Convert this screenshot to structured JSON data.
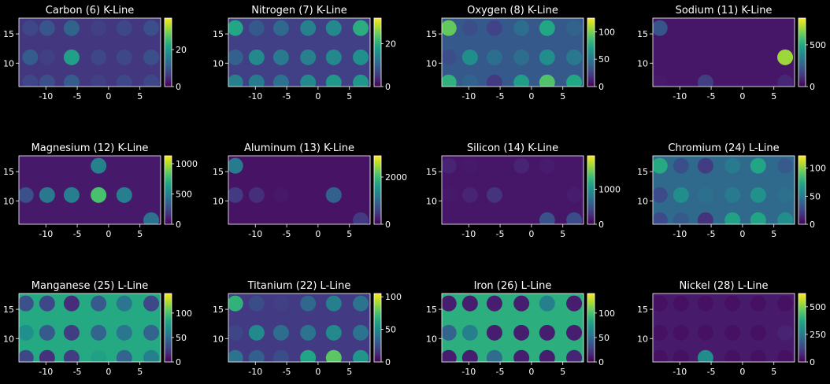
{
  "figure": {
    "background": "#000000",
    "foreground": "#ffffff",
    "colormap": "viridis"
  },
  "chart_data": [
    {
      "type": "heatmap",
      "title": "Carbon (6) K-Line",
      "xlim": [
        -14.3,
        8.3
      ],
      "ylim": [
        6,
        17.7
      ],
      "xticks": [
        "-10",
        "-5",
        "0",
        "5"
      ],
      "xtick_values": [
        -10,
        -5,
        0,
        5
      ],
      "yticks": [
        "10",
        "15"
      ],
      "ytick_values": [
        10,
        15
      ],
      "colorbar": {
        "min": 0,
        "max": 37,
        "ticks": [
          "0",
          "20"
        ],
        "tick_values": [
          0,
          20
        ]
      },
      "background_value": 6,
      "wells": {
        "columns_x": [
          -12.5,
          -9.8,
          -5.9,
          -1.6,
          2.5,
          6.8
        ],
        "rows_y": [
          16,
          11,
          6.7
        ],
        "values": [
          [
            8,
            10,
            12,
            7,
            8,
            9
          ],
          [
            11,
            7,
            21,
            8,
            8,
            9
          ],
          [
            8,
            9,
            11,
            7,
            8,
            8
          ]
        ]
      }
    },
    {
      "type": "heatmap",
      "title": "Nitrogen (7) K-Line",
      "xlim": [
        -14.3,
        8.3
      ],
      "ylim": [
        6,
        17.7
      ],
      "xticks": [
        "-10",
        "-5",
        "0",
        "5"
      ],
      "xtick_values": [
        -10,
        -5,
        0,
        5
      ],
      "yticks": [
        "10",
        "15"
      ],
      "ytick_values": [
        10,
        15
      ],
      "colorbar": {
        "min": 0,
        "max": 32,
        "ticks": [
          "0",
          "20"
        ],
        "tick_values": [
          0,
          20
        ]
      },
      "background_value": 6,
      "wells": {
        "columns_x": [
          -13.2,
          -9.8,
          -5.9,
          -1.6,
          2.5,
          6.8
        ],
        "rows_y": [
          16,
          11,
          6.7
        ],
        "values": [
          [
            19,
            9,
            11,
            14,
            15,
            20
          ],
          [
            10,
            15,
            13,
            14,
            15,
            16
          ],
          [
            14,
            13,
            12,
            15,
            17,
            17
          ]
        ]
      }
    },
    {
      "type": "heatmap",
      "title": "Oxygen (8) K-Line",
      "xlim": [
        -14.3,
        8.3
      ],
      "ylim": [
        6,
        17.7
      ],
      "xticks": [
        "-10",
        "-5",
        "0",
        "5"
      ],
      "xtick_values": [
        -10,
        -5,
        0,
        5
      ],
      "yticks": [
        "10",
        "15"
      ],
      "ytick_values": [
        10,
        15
      ],
      "colorbar": {
        "min": 0,
        "max": 125,
        "ticks": [
          "0",
          "50",
          "100"
        ],
        "tick_values": [
          0,
          50,
          100
        ]
      },
      "background_value": 35,
      "wells": {
        "columns_x": [
          -13.2,
          -9.8,
          -5.9,
          -1.6,
          2.5,
          6.8
        ],
        "rows_y": [
          16,
          11,
          6.7
        ],
        "values": [
          [
            95,
            30,
            25,
            45,
            75,
            40
          ],
          [
            30,
            62,
            45,
            45,
            62,
            50
          ],
          [
            80,
            40,
            22,
            70,
            90,
            75
          ]
        ]
      }
    },
    {
      "type": "heatmap",
      "title": "Sodium (11) K-Line",
      "xlim": [
        -14.3,
        8.3
      ],
      "ylim": [
        6,
        17.7
      ],
      "xticks": [
        "-10",
        "-5",
        "0",
        "5"
      ],
      "xtick_values": [
        -10,
        -5,
        0,
        5
      ],
      "yticks": [
        "10",
        "15"
      ],
      "ytick_values": [
        10,
        15
      ],
      "colorbar": {
        "min": 0,
        "max": 820,
        "ticks": [
          "0",
          "500"
        ],
        "tick_values": [
          0,
          500
        ]
      },
      "background_value": 50,
      "wells": {
        "columns_x": [
          -13.2,
          -9.8,
          -5.9,
          -1.6,
          2.5,
          6.8
        ],
        "rows_y": [
          16,
          11,
          6.7
        ],
        "values": [
          [
            220,
            50,
            50,
            50,
            50,
            50
          ],
          [
            50,
            50,
            50,
            50,
            50,
            700
          ],
          [
            60,
            50,
            150,
            50,
            50,
            90
          ]
        ]
      }
    },
    {
      "type": "heatmap",
      "title": "Magnesium (12) K-Line",
      "xlim": [
        -14.3,
        8.3
      ],
      "ylim": [
        6,
        17.7
      ],
      "xticks": [
        "-10",
        "-5",
        "0",
        "5"
      ],
      "xtick_values": [
        -10,
        -5,
        0,
        5
      ],
      "yticks": [
        "10",
        "15"
      ],
      "ytick_values": [
        10,
        15
      ],
      "colorbar": {
        "min": 0,
        "max": 1130,
        "ticks": [
          "0",
          "500",
          "1000"
        ],
        "tick_values": [
          0,
          500,
          1000
        ]
      },
      "background_value": 80,
      "wells": {
        "columns_x": [
          -13.2,
          -9.8,
          -5.9,
          -1.6,
          2.5,
          6.8
        ],
        "rows_y": [
          16,
          11,
          6.7
        ],
        "values": [
          [
            80,
            80,
            80,
            500,
            80,
            80
          ],
          [
            280,
            450,
            480,
            800,
            480,
            80
          ],
          [
            80,
            80,
            80,
            80,
            80,
            420
          ]
        ]
      }
    },
    {
      "type": "heatmap",
      "title": "Aluminum (13) K-Line",
      "xlim": [
        -14.3,
        8.3
      ],
      "ylim": [
        6,
        17.7
      ],
      "xticks": [
        "-10",
        "-5",
        "0",
        "5"
      ],
      "xtick_values": [
        -10,
        -5,
        0,
        5
      ],
      "yticks": [
        "10",
        "15"
      ],
      "ytick_values": [
        10,
        15
      ],
      "colorbar": {
        "min": 0,
        "max": 2900,
        "ticks": [
          "0",
          "2000"
        ],
        "tick_values": [
          0,
          2000
        ]
      },
      "background_value": 150,
      "wells": {
        "columns_x": [
          -13.2,
          -9.8,
          -5.9,
          -1.6,
          2.5,
          6.8
        ],
        "rows_y": [
          16,
          11,
          6.7
        ],
        "values": [
          [
            1200,
            150,
            150,
            150,
            150,
            150
          ],
          [
            500,
            400,
            200,
            150,
            900,
            150
          ],
          [
            150,
            150,
            150,
            150,
            150,
            500
          ]
        ]
      }
    },
    {
      "type": "heatmap",
      "title": "Silicon (14) K-Line",
      "xlim": [
        -14.3,
        8.3
      ],
      "ylim": [
        6,
        17.7
      ],
      "xticks": [
        "-10",
        "-5",
        "0",
        "5"
      ],
      "xtick_values": [
        -10,
        -5,
        0,
        5
      ],
      "yticks": [
        "10",
        "15"
      ],
      "ytick_values": [
        10,
        15
      ],
      "colorbar": {
        "min": 0,
        "max": 1950,
        "ticks": [
          "0",
          "1000"
        ],
        "tick_values": [
          0,
          1000
        ]
      },
      "background_value": 120,
      "wells": {
        "columns_x": [
          -13.2,
          -9.8,
          -5.9,
          -1.6,
          2.5,
          6.8
        ],
        "rows_y": [
          16,
          11,
          6.7
        ],
        "values": [
          [
            200,
            140,
            120,
            200,
            150,
            120
          ],
          [
            140,
            200,
            300,
            120,
            120,
            150
          ],
          [
            120,
            120,
            120,
            120,
            500,
            450
          ]
        ]
      }
    },
    {
      "type": "heatmap",
      "title": "Chromium (24) L-Line",
      "xlim": [
        -14.3,
        8.3
      ],
      "ylim": [
        6,
        17.7
      ],
      "xticks": [
        "-10",
        "-5",
        "0",
        "5"
      ],
      "xtick_values": [
        -10,
        -5,
        0,
        5
      ],
      "yticks": [
        "10",
        "15"
      ],
      "ytick_values": [
        10,
        15
      ],
      "colorbar": {
        "min": 0,
        "max": 122,
        "ticks": [
          "0",
          "50",
          "100"
        ],
        "tick_values": [
          0,
          50,
          100
        ]
      },
      "background_value": 42,
      "wells": {
        "columns_x": [
          -13.2,
          -9.8,
          -5.9,
          -1.6,
          2.5,
          6.8
        ],
        "rows_y": [
          16,
          11,
          6.7
        ],
        "values": [
          [
            75,
            30,
            22,
            50,
            72,
            35
          ],
          [
            28,
            60,
            45,
            50,
            62,
            45
          ],
          [
            28,
            35,
            18,
            70,
            72,
            60
          ]
        ]
      }
    },
    {
      "type": "heatmap",
      "title": "Manganese (25) L-Line",
      "xlim": [
        -14.3,
        8.3
      ],
      "ylim": [
        6,
        17.7
      ],
      "xticks": [
        "-10",
        "-5",
        "0",
        "5"
      ],
      "xtick_values": [
        -10,
        -5,
        0,
        5
      ],
      "yticks": [
        "10",
        "15"
      ],
      "ytick_values": [
        10,
        15
      ],
      "colorbar": {
        "min": 0,
        "max": 140,
        "ticks": [
          "0",
          "50",
          "100"
        ],
        "tick_values": [
          0,
          50,
          100
        ]
      },
      "background_value": 85,
      "wells": {
        "columns_x": [
          -13.2,
          -9.8,
          -5.9,
          -1.6,
          2.5,
          6.8
        ],
        "rows_y": [
          16,
          11,
          6.7
        ],
        "values": [
          [
            35,
            30,
            18,
            40,
            55,
            30
          ],
          [
            70,
            40,
            25,
            45,
            55,
            45
          ],
          [
            30,
            20,
            25,
            80,
            45,
            60
          ]
        ]
      }
    },
    {
      "type": "heatmap",
      "title": "Titanium (22) L-Line",
      "xlim": [
        -14.3,
        8.3
      ],
      "ylim": [
        6,
        17.7
      ],
      "xticks": [
        "-10",
        "-5",
        "0",
        "5"
      ],
      "xtick_values": [
        -10,
        -5,
        0,
        5
      ],
      "yticks": [
        "10",
        "15"
      ],
      "ytick_values": [
        10,
        15
      ],
      "colorbar": {
        "min": 0,
        "max": 105,
        "ticks": [
          "0",
          "50",
          "100"
        ],
        "tick_values": [
          0,
          50,
          100
        ]
      },
      "background_value": 18,
      "wells": {
        "columns_x": [
          -13.2,
          -9.8,
          -5.9,
          -1.6,
          2.5,
          6.8
        ],
        "rows_y": [
          16,
          11,
          6.7
        ],
        "values": [
          [
            68,
            25,
            20,
            35,
            45,
            40
          ],
          [
            22,
            50,
            38,
            40,
            50,
            40
          ],
          [
            40,
            32,
            25,
            62,
            78,
            55
          ]
        ]
      }
    },
    {
      "type": "heatmap",
      "title": "Iron (26) L-Line",
      "xlim": [
        -14.3,
        8.3
      ],
      "ylim": [
        6,
        17.7
      ],
      "xticks": [
        "-10",
        "-5",
        "0",
        "5"
      ],
      "xtick_values": [
        -10,
        -5,
        0,
        5
      ],
      "yticks": [
        "10",
        "15"
      ],
      "ytick_values": [
        10,
        15
      ],
      "colorbar": {
        "min": 0,
        "max": 140,
        "ticks": [
          "0",
          "50",
          "100"
        ],
        "tick_values": [
          0,
          50,
          100
        ]
      },
      "background_value": 88,
      "wells": {
        "columns_x": [
          -13.2,
          -9.8,
          -5.9,
          -1.6,
          2.5,
          6.8
        ],
        "rows_y": [
          16,
          11,
          6.7
        ],
        "values": [
          [
            12,
            12,
            12,
            12,
            60,
            12
          ],
          [
            45,
            60,
            12,
            12,
            12,
            12
          ],
          [
            12,
            12,
            50,
            12,
            12,
            15
          ]
        ]
      }
    },
    {
      "type": "heatmap",
      "title": "Nickel (28) L-Line",
      "xlim": [
        -14.3,
        8.3
      ],
      "ylim": [
        6,
        17.7
      ],
      "xticks": [
        "-10",
        "-5",
        "0",
        "5"
      ],
      "xtick_values": [
        -10,
        -5,
        0,
        5
      ],
      "yticks": [
        "10",
        "15"
      ],
      "ytick_values": [
        10,
        15
      ],
      "colorbar": {
        "min": 0,
        "max": 620,
        "ticks": [
          "0",
          "250",
          "500"
        ],
        "tick_values": [
          0,
          250,
          500
        ]
      },
      "background_value": 45,
      "wells": {
        "columns_x": [
          -13.2,
          -9.8,
          -5.9,
          -1.6,
          2.5,
          6.8
        ],
        "rows_y": [
          16,
          11,
          6.7
        ],
        "values": [
          [
            30,
            30,
            30,
            30,
            30,
            30
          ],
          [
            30,
            30,
            30,
            30,
            30,
            60
          ],
          [
            30,
            30,
            300,
            30,
            30,
            30
          ]
        ]
      }
    }
  ]
}
